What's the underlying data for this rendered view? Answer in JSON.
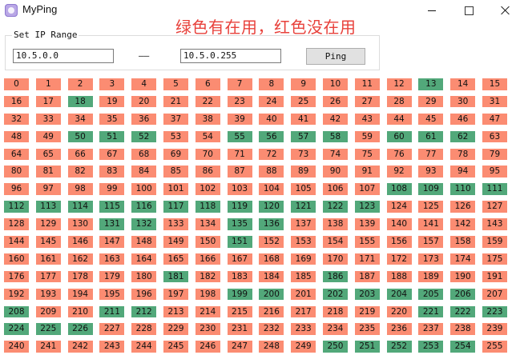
{
  "window": {
    "title": "MyPing",
    "icon": "app-icon",
    "annotation": "绿色有在用，红色没在用"
  },
  "controls": {
    "group_label": "Set IP Range",
    "start_ip": "10.5.0.0",
    "separator": "——",
    "end_ip": "10.5.0.255",
    "ping_label": "Ping"
  },
  "colors": {
    "in_use": "#52a87a",
    "not_in_use": "#fb8c72"
  },
  "hosts": {
    "count": 256,
    "in_use": [
      13,
      18,
      50,
      51,
      52,
      55,
      56,
      57,
      58,
      60,
      61,
      62,
      108,
      109,
      110,
      111,
      112,
      113,
      114,
      115,
      116,
      117,
      118,
      119,
      120,
      121,
      122,
      123,
      131,
      132,
      135,
      136,
      151,
      181,
      186,
      199,
      200,
      202,
      203,
      204,
      205,
      206,
      208,
      211,
      212,
      221,
      222,
      223,
      224,
      225,
      226,
      250,
      251,
      252,
      253,
      254
    ]
  }
}
